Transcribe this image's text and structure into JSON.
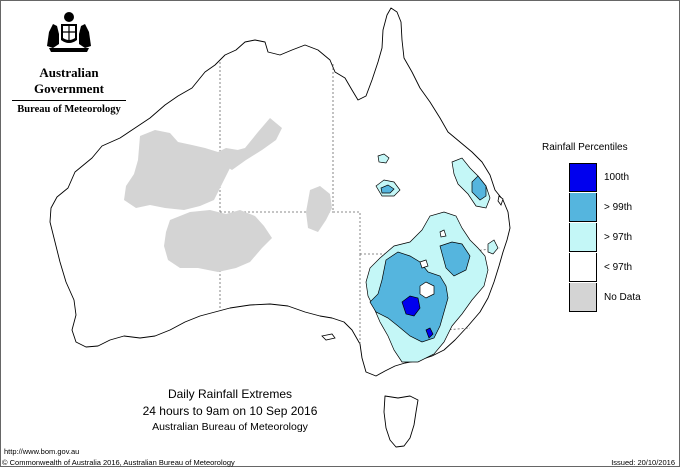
{
  "header": {
    "government": "Australian Government",
    "bureau": "Bureau of Meteorology"
  },
  "map": {
    "title": "Daily Rainfall Extremes",
    "period": "24 hours to 9am on 10 Sep 2016",
    "source": "Australian Bureau of Meteorology",
    "region": "Australia"
  },
  "legend": {
    "title": "Rainfall Percentiles",
    "items": [
      {
        "label": "100th",
        "color": "#0000ee"
      },
      {
        "label": "> 99th",
        "color": "#55b5de"
      },
      {
        "label": "> 97th",
        "color": "#c4f7f7"
      },
      {
        "label": "< 97th",
        "color": "#ffffff"
      },
      {
        "label": "No Data",
        "color": "#d4d4d4"
      }
    ]
  },
  "footer": {
    "url": "http://www.bom.gov.au",
    "copyright": "© Commonwealth of Australia 2016, Australian Bureau of Meteorology",
    "issued": "Issued: 20/10/2016"
  }
}
